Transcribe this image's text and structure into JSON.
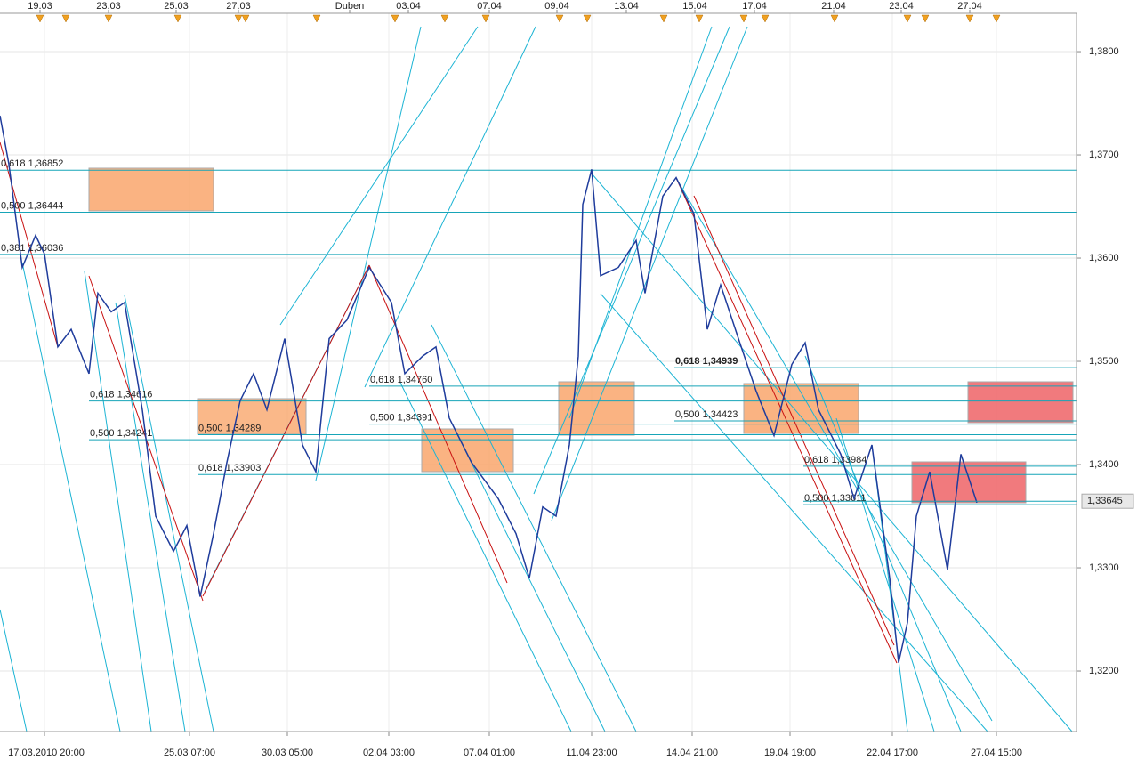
{
  "chart_data": {
    "type": "line",
    "color": "#1f3c9c",
    "grid": true,
    "xlim": [
      0,
      605
    ],
    "ylim": [
      1.31414,
      1.38371
    ],
    "yticks": [
      {
        "value": 1.32,
        "label": "1,3200"
      },
      {
        "value": 1.33,
        "label": "1,3300"
      },
      {
        "value": 1.34,
        "label": "1,3400"
      },
      {
        "value": 1.35,
        "label": "1,3500"
      },
      {
        "value": 1.36,
        "label": "1,3600"
      },
      {
        "value": 1.37,
        "label": "1,3700"
      },
      {
        "value": 1.38,
        "label": "1,3800"
      }
    ],
    "xticks": [
      {
        "value": 25,
        "label": "17.03.2010 20:00"
      },
      {
        "value": 106.5,
        "label": "25.03 07:00"
      },
      {
        "value": 161.5,
        "label": "30.03 05:00"
      },
      {
        "value": 218.5,
        "label": "02.04 03:00"
      },
      {
        "value": 275,
        "label": "07.04 01:00"
      },
      {
        "value": 332.5,
        "label": "11.04 23:00"
      },
      {
        "value": 389,
        "label": "14.04 21:00"
      },
      {
        "value": 444,
        "label": "19.04 19:00"
      },
      {
        "value": 501.5,
        "label": "22.04 17:00"
      },
      {
        "value": 560,
        "label": "27.04 15:00"
      }
    ],
    "top_ticks": [
      {
        "value": 22.5,
        "label": "19.03"
      },
      {
        "value": 61,
        "label": "23.03"
      },
      {
        "value": 99,
        "label": "25.03"
      },
      {
        "value": 134,
        "label": "27.03"
      },
      {
        "value": 196.5,
        "label": "Duben"
      },
      {
        "value": 229.5,
        "label": "03.04"
      },
      {
        "value": 275,
        "label": "07.04"
      },
      {
        "value": 313,
        "label": "09.04"
      },
      {
        "value": 352,
        "label": "13.04"
      },
      {
        "value": 390.5,
        "label": "15.04"
      },
      {
        "value": 424,
        "label": "17.04"
      },
      {
        "value": 468.5,
        "label": "21.04"
      },
      {
        "value": 506.5,
        "label": "23.04"
      },
      {
        "value": 545,
        "label": "27.04"
      }
    ],
    "x": [
      0,
      5,
      12.5,
      20,
      25,
      32.5,
      40,
      50,
      55,
      62.5,
      70,
      80,
      87.5,
      97.5,
      105,
      112.5,
      120,
      127.5,
      135,
      142.5,
      150,
      160,
      170,
      177.5,
      185,
      195,
      207.5,
      220,
      227.5,
      237.5,
      245,
      252.5,
      265,
      280,
      290,
      297.5,
      305,
      312.5,
      320,
      325,
      327.5,
      332.5,
      337.5,
      347.5,
      357.5,
      362.5,
      372.5,
      380,
      390,
      397.5,
      405,
      415,
      425,
      435,
      445,
      452.5,
      460,
      472.5,
      480,
      490,
      500,
      505,
      510,
      515,
      522.5,
      532.5,
      540,
      549
    ],
    "values": [
      1.3738,
      1.3691,
      1.3591,
      1.3622,
      1.3604,
      1.3514,
      1.3531,
      1.3488,
      1.3566,
      1.3548,
      1.3557,
      1.3453,
      1.335,
      1.3316,
      1.3341,
      1.3272,
      1.3333,
      1.3402,
      1.3462,
      1.3488,
      1.3453,
      1.3522,
      1.3419,
      1.3393,
      1.3522,
      1.354,
      1.3591,
      1.3557,
      1.3488,
      1.3505,
      1.3514,
      1.3445,
      1.3402,
      1.3367,
      1.3333,
      1.329,
      1.3359,
      1.335,
      1.3419,
      1.3505,
      1.3652,
      1.3686,
      1.3583,
      1.3591,
      1.3617,
      1.3566,
      1.366,
      1.3678,
      1.3643,
      1.3531,
      1.3574,
      1.3522,
      1.3471,
      1.3428,
      1.3497,
      1.3518,
      1.3453,
      1.341,
      1.3367,
      1.3419,
      1.329,
      1.3208,
      1.3247,
      1.335,
      1.3393,
      1.3298,
      1.341,
      1.3363
    ],
    "fib_levels": [
      {
        "value": 1.36852,
        "label": "0,618 1,36852"
      },
      {
        "value": 1.36444,
        "label": "0,500 1,36444"
      },
      {
        "value": 1.36036,
        "label": "0,381 1,36036"
      },
      {
        "value": 1.34616,
        "label": "0,618 1,34616"
      },
      {
        "value": 1.34241,
        "label": "0,500 1,34241"
      },
      {
        "value": 1.34289,
        "label": "0,500 1,34289"
      },
      {
        "value": 1.33903,
        "label": "0,618 1,33903"
      },
      {
        "value": 1.3476,
        "label": "0,618 1,34760"
      },
      {
        "value": 1.34391,
        "label": "0,500 1,34391"
      },
      {
        "value": 1.34939,
        "label": "0,618 1,34939"
      },
      {
        "value": 1.34423,
        "label": "0,500 1,34423"
      },
      {
        "value": 1.33984,
        "label": "0,618 1,33984"
      },
      {
        "value": 1.33611,
        "label": "0,500 1,33611"
      }
    ],
    "last_price": {
      "value": 1.33645,
      "label": "1,33645"
    }
  }
}
